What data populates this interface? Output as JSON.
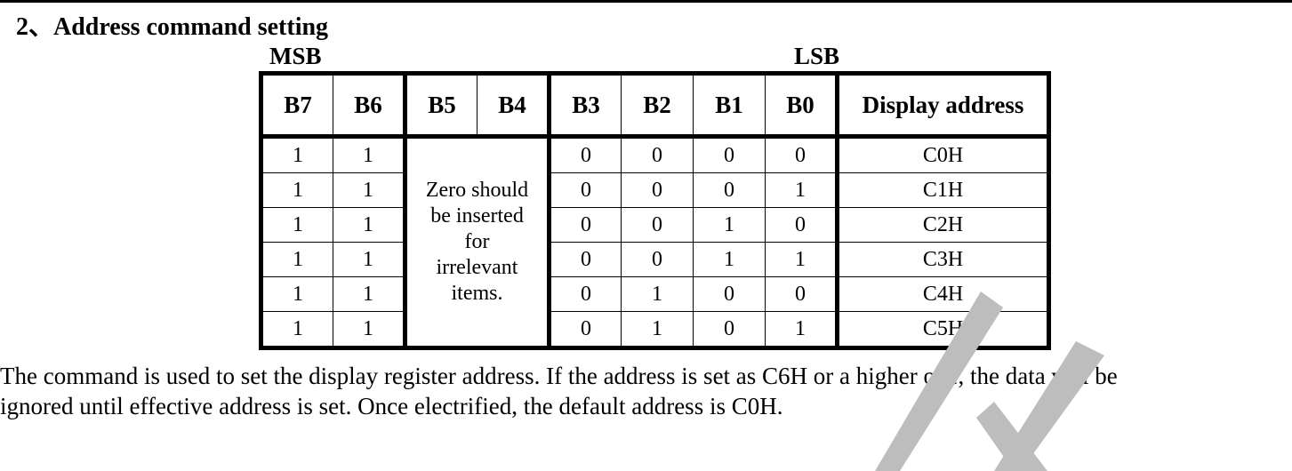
{
  "section": {
    "heading": "2、Address command setting"
  },
  "table": {
    "msb_label": "MSB",
    "lsb_label": "LSB",
    "headers": [
      "B7",
      "B6",
      "B5",
      "B4",
      "B3",
      "B2",
      "B1",
      "B0",
      "Display address"
    ],
    "note_lines": [
      "Zero should",
      "be inserted",
      "for",
      "irrelevant",
      "items."
    ],
    "rows": [
      {
        "b7": "1",
        "b6": "1",
        "b3": "0",
        "b2": "0",
        "b1": "0",
        "b0": "0",
        "addr": "C0H"
      },
      {
        "b7": "1",
        "b6": "1",
        "b3": "0",
        "b2": "0",
        "b1": "0",
        "b0": "1",
        "addr": "C1H"
      },
      {
        "b7": "1",
        "b6": "1",
        "b3": "0",
        "b2": "0",
        "b1": "1",
        "b0": "0",
        "addr": "C2H"
      },
      {
        "b7": "1",
        "b6": "1",
        "b3": "0",
        "b2": "0",
        "b1": "1",
        "b0": "1",
        "addr": "C3H"
      },
      {
        "b7": "1",
        "b6": "1",
        "b3": "0",
        "b2": "1",
        "b1": "0",
        "b0": "0",
        "addr": "C4H"
      },
      {
        "b7": "1",
        "b6": "1",
        "b3": "0",
        "b2": "1",
        "b1": "0",
        "b0": "1",
        "addr": "C5H"
      }
    ]
  },
  "description": {
    "line1": "The command is used to set the display register address. If the address is set as C6H or a higher one, the data will be",
    "line2": "ignored until effective address is set. Once electrified, the default address is C0H."
  },
  "watermark": {
    "color": "#bdbdbd"
  }
}
